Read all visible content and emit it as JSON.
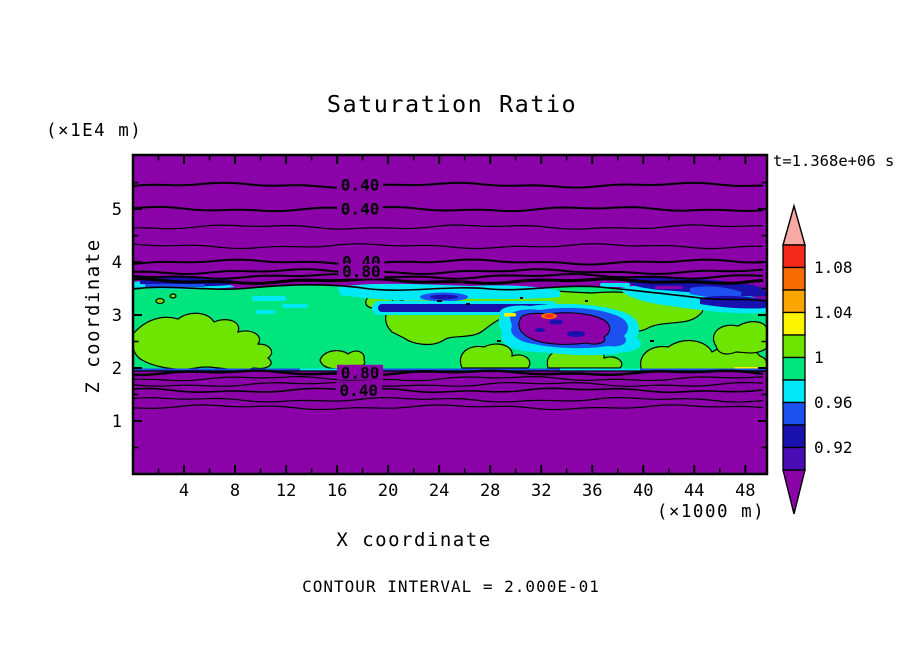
{
  "chart_data": {
    "type": "heatmap",
    "title": "Saturation Ratio",
    "time_label": "t=1.368e+06 s",
    "xlabel": "X coordinate",
    "ylabel": "Z coordinate",
    "x_unit_label": "(×1000 m)",
    "y_unit_label": "(×1E4 m)",
    "footer_label": "CONTOUR INTERVAL = 2.000E-01",
    "contour_interval": 0.2,
    "xlim": [
      0,
      49.7
    ],
    "ylim": [
      0,
      6.02
    ],
    "x_tick_values": [
      4,
      8,
      12,
      16,
      20,
      24,
      28,
      32,
      36,
      40,
      44,
      48
    ],
    "x_tick_labels": [
      "4",
      "8",
      "12",
      "16",
      "20",
      "24",
      "28",
      "32",
      "36",
      "40",
      "44",
      "48"
    ],
    "x_minor_ticks": [
      2,
      6,
      10,
      14,
      18,
      22,
      26,
      30,
      34,
      38,
      42,
      46
    ],
    "y_tick_values": [
      1,
      2,
      3,
      4,
      5
    ],
    "y_tick_labels": [
      "1",
      "2",
      "3",
      "4",
      "5"
    ],
    "y_minor_ticks": [
      0.5,
      1.5,
      2.5,
      3.5,
      4.5,
      5.5
    ],
    "colorbar": {
      "step": 0.02,
      "tick_labels": [
        "1.08",
        "1.04",
        "1",
        "0.96",
        "0.92"
      ],
      "segment_colors_top_to_bottom": [
        "#F6281A",
        "#F76B00",
        "#FBA600",
        "#FBF300",
        "#6EE500",
        "#00E57D",
        "#00E7F5",
        "#1C50F0",
        "#1911AE",
        "#4A0DB5"
      ],
      "arrow_top_color": "#F9A9A4",
      "arrow_bottom_color": "#8B02A8"
    },
    "region_colors": {
      "background_purple": "#8B02A8",
      "band_spring_green": "#00E57D",
      "chartreuse": "#6EE500",
      "cyan": "#00E7F5",
      "blue": "#1C50F0",
      "navy": "#1911AE",
      "red_spot": "#F6281A",
      "orange_ring": "#F76B00",
      "yellow_dash": "#FBF300"
    },
    "contour_lines": [
      {
        "z": 5.45,
        "label": "0.40",
        "label_x": 17.8,
        "w": 2
      },
      {
        "z": 5.0,
        "label": "0.40",
        "label_x": 17.8,
        "w": 2
      },
      {
        "z": 4.66,
        "w": 1.2
      },
      {
        "z": 4.3,
        "w": 1.2
      },
      {
        "z": 4.0,
        "label": "0.40",
        "label_x": 17.9,
        "w": 2
      },
      {
        "z": 3.82,
        "label": "0.80",
        "label_x": 17.9,
        "w": 2
      },
      {
        "z": 3.73,
        "w": 2
      },
      {
        "z": 3.64,
        "w": 3
      },
      {
        "z": 1.91,
        "label": "0.80",
        "label_x": 17.8,
        "w": 2.5
      },
      {
        "z": 1.8,
        "w": 1.2
      },
      {
        "z": 1.69,
        "w": 1.2
      },
      {
        "z": 1.58,
        "label": "0.40",
        "label_x": 17.7,
        "w": 1.6
      },
      {
        "z": 1.4,
        "w": 1.2
      },
      {
        "z": 1.26,
        "w": 1.2
      }
    ]
  }
}
